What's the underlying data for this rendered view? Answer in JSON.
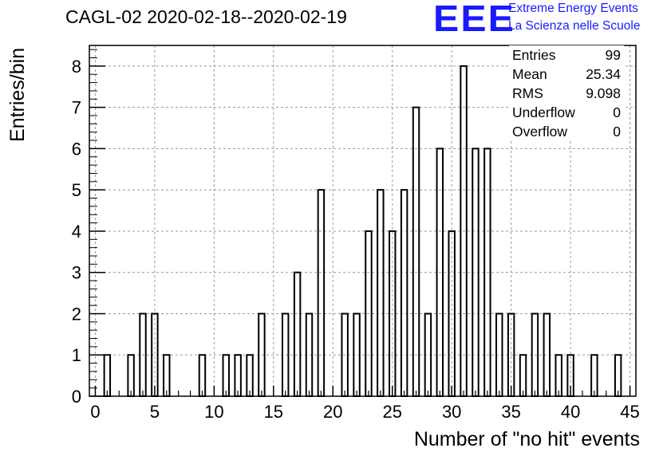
{
  "title": "CAGL-02 2020-02-18--2020-02-19",
  "logo": {
    "mark": "EEE",
    "line1": "Extreme Energy Events",
    "line2": "La Scienza nelle Scuole",
    "color": "#1a1aff"
  },
  "stats": [
    {
      "label": "Entries",
      "value": "99"
    },
    {
      "label": "Mean",
      "value": "25.34"
    },
    {
      "label": "RMS",
      "value": "9.098"
    },
    {
      "label": "Underflow",
      "value": "0"
    },
    {
      "label": "Overflow",
      "value": "0"
    }
  ],
  "chart_data": {
    "type": "bar",
    "title": "CAGL-02 2020-02-18--2020-02-19",
    "xlabel": "Number of \"no hit\" events",
    "ylabel": "Entries/bin",
    "xlim": [
      -0.5,
      45.5
    ],
    "ylim": [
      0,
      8.5
    ],
    "xticks": [
      0,
      5,
      10,
      15,
      20,
      25,
      30,
      35,
      40,
      45
    ],
    "yticks": [
      0,
      1,
      2,
      3,
      4,
      5,
      6,
      7,
      8
    ],
    "grid": true,
    "bin_width": 0.5,
    "bars": [
      {
        "x": 1,
        "y": 1
      },
      {
        "x": 3,
        "y": 1
      },
      {
        "x": 4,
        "y": 2
      },
      {
        "x": 5,
        "y": 2
      },
      {
        "x": 6,
        "y": 1
      },
      {
        "x": 9,
        "y": 1
      },
      {
        "x": 11,
        "y": 1
      },
      {
        "x": 12,
        "y": 1
      },
      {
        "x": 13,
        "y": 1
      },
      {
        "x": 14,
        "y": 2
      },
      {
        "x": 16,
        "y": 2
      },
      {
        "x": 17,
        "y": 3
      },
      {
        "x": 18,
        "y": 2
      },
      {
        "x": 19,
        "y": 5
      },
      {
        "x": 21,
        "y": 2
      },
      {
        "x": 22,
        "y": 2
      },
      {
        "x": 23,
        "y": 4
      },
      {
        "x": 24,
        "y": 5
      },
      {
        "x": 25,
        "y": 4
      },
      {
        "x": 26,
        "y": 5
      },
      {
        "x": 27,
        "y": 7
      },
      {
        "x": 28,
        "y": 2
      },
      {
        "x": 29,
        "y": 6
      },
      {
        "x": 30,
        "y": 4
      },
      {
        "x": 31,
        "y": 8
      },
      {
        "x": 32,
        "y": 6
      },
      {
        "x": 33,
        "y": 6
      },
      {
        "x": 34,
        "y": 2
      },
      {
        "x": 35,
        "y": 2
      },
      {
        "x": 36,
        "y": 1
      },
      {
        "x": 37,
        "y": 2
      },
      {
        "x": 38,
        "y": 2
      },
      {
        "x": 39,
        "y": 1
      },
      {
        "x": 40,
        "y": 1
      },
      {
        "x": 42,
        "y": 1
      },
      {
        "x": 44,
        "y": 1
      }
    ]
  }
}
